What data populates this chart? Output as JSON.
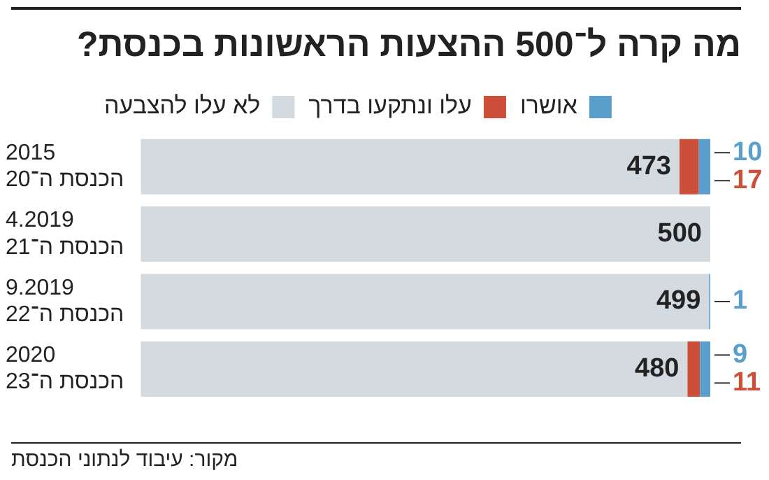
{
  "chart_data": {
    "type": "bar",
    "orientation": "horizontal",
    "stacked": true,
    "title": "מה קרה ל־500 ההצעות הראשונות בכנסת?",
    "categories": [
      "2015\nהכנסת ה־20",
      "4.2019\nהכנסת ה־21",
      "9.2019\nהכנסת ה־22",
      "2020\nהכנסת ה־23"
    ],
    "series": [
      {
        "name": "לא עלו להצבעה",
        "color": "#d3dae0",
        "values": [
          473,
          500,
          499,
          480
        ],
        "value_labels": [
          "473",
          "500",
          "499",
          "480"
        ]
      },
      {
        "name": "עלו ונתקעו בדרך",
        "color": "#cc4f3a",
        "values": [
          17,
          0,
          0,
          11
        ],
        "value_labels": [
          "17",
          null,
          null,
          "11"
        ]
      },
      {
        "name": "אושרו",
        "color": "#5a9fcc",
        "values": [
          10,
          0,
          1,
          9
        ],
        "value_labels": [
          "10",
          null,
          "1",
          "9"
        ]
      }
    ],
    "xlim": [
      0,
      500
    ],
    "tick_labels": "y",
    "grid": false,
    "legend": "top",
    "annotations": [
      "מקור: עיבוד לנתוני הכנסת"
    ]
  }
}
